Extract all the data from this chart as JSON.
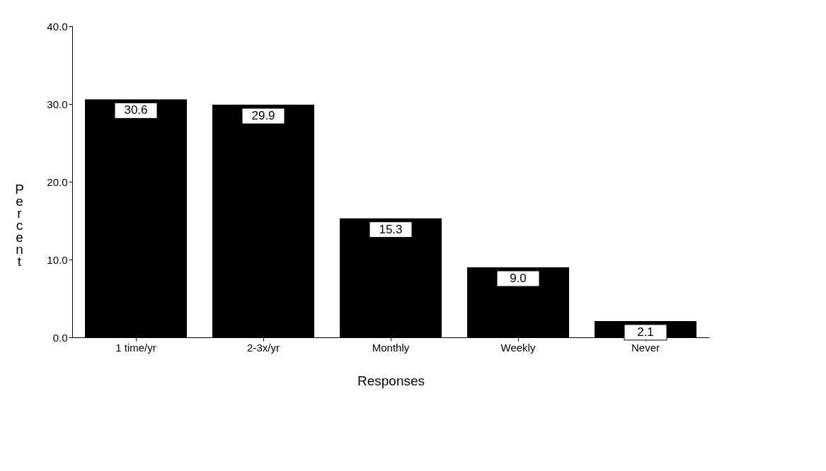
{
  "chart_data": {
    "type": "bar",
    "xlabel": "Responses",
    "ylabel": "Percent",
    "categories": [
      "1 time/yr",
      "2-3x/yr",
      "Monthly",
      "Weekly",
      "Never"
    ],
    "values": [
      30.6,
      29.9,
      15.3,
      9.0,
      2.1
    ],
    "value_labels": [
      "30.6",
      "29.9",
      "15.3",
      "9.0",
      "2.1"
    ],
    "color": "#000000",
    "ylim": [
      0,
      40
    ],
    "yticks": [
      {
        "value": 0,
        "label": "0.0"
      },
      {
        "value": 10,
        "label": "10.0"
      },
      {
        "value": 20,
        "label": "20.0"
      },
      {
        "value": 30,
        "label": "30.0"
      },
      {
        "value": 40,
        "label": "40.0"
      }
    ],
    "grid": false
  }
}
